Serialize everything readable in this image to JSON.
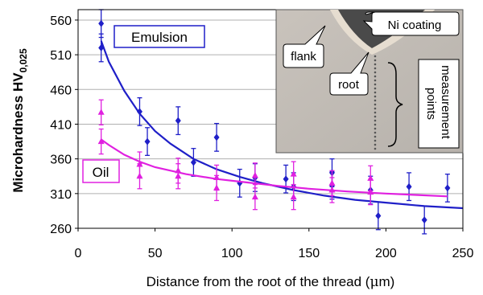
{
  "chart_data": {
    "type": "scatter",
    "xlabel_prefix": "Distance from the root of the thread (",
    "xlabel_mu": "μ",
    "xlabel_suffix": "m)",
    "ylabel_main": "Microhardness HV",
    "ylabel_sub": "0,025",
    "xlim": [
      0,
      250
    ],
    "ylim": [
      260,
      575
    ],
    "xticks": [
      0,
      50,
      100,
      150,
      200,
      250
    ],
    "yticks": [
      260,
      310,
      360,
      410,
      460,
      510,
      560
    ],
    "grid": "horizontal",
    "series": [
      {
        "name": "Emulsion",
        "color": "#1f1fc8",
        "marker": "diamond",
        "points": [
          {
            "x": 15,
            "y": 555,
            "err": 20
          },
          {
            "x": 15,
            "y": 520,
            "err": 20
          },
          {
            "x": 40,
            "y": 428,
            "err": 20
          },
          {
            "x": 45,
            "y": 385,
            "err": 20
          },
          {
            "x": 65,
            "y": 415,
            "err": 20
          },
          {
            "x": 75,
            "y": 355,
            "err": 20
          },
          {
            "x": 90,
            "y": 391,
            "err": 20
          },
          {
            "x": 105,
            "y": 325,
            "err": 20
          },
          {
            "x": 115,
            "y": 333,
            "err": 20
          },
          {
            "x": 135,
            "y": 331,
            "err": 20
          },
          {
            "x": 140,
            "y": 320,
            "err": 20
          },
          {
            "x": 165,
            "y": 340,
            "err": 20
          },
          {
            "x": 165,
            "y": 322,
            "err": 20
          },
          {
            "x": 190,
            "y": 315,
            "err": 20
          },
          {
            "x": 195,
            "y": 278,
            "err": 20
          },
          {
            "x": 215,
            "y": 320,
            "err": 20
          },
          {
            "x": 225,
            "y": 272,
            "err": 20
          },
          {
            "x": 240,
            "y": 318,
            "err": 20
          }
        ],
        "trend": {
          "x": [
            15,
            20,
            30,
            40,
            50,
            60,
            75,
            90,
            105,
            120,
            140,
            160,
            180,
            200,
            225,
            250
          ],
          "y": [
            530,
            500,
            458,
            425,
            400,
            382,
            360,
            345,
            334,
            325,
            315,
            307,
            301,
            297,
            292,
            289
          ]
        }
      },
      {
        "name": "Oil",
        "color": "#e020e0",
        "marker": "triangle",
        "points": [
          {
            "x": 15,
            "y": 427,
            "err": 18
          },
          {
            "x": 15,
            "y": 385,
            "err": 18
          },
          {
            "x": 40,
            "y": 352,
            "err": 18
          },
          {
            "x": 40,
            "y": 335,
            "err": 18
          },
          {
            "x": 65,
            "y": 343,
            "err": 18
          },
          {
            "x": 65,
            "y": 335,
            "err": 18
          },
          {
            "x": 90,
            "y": 333,
            "err": 18
          },
          {
            "x": 90,
            "y": 318,
            "err": 18
          },
          {
            "x": 115,
            "y": 336,
            "err": 18
          },
          {
            "x": 115,
            "y": 305,
            "err": 18
          },
          {
            "x": 140,
            "y": 338,
            "err": 18
          },
          {
            "x": 140,
            "y": 305,
            "err": 18
          },
          {
            "x": 165,
            "y": 325,
            "err": 18
          },
          {
            "x": 165,
            "y": 315,
            "err": 18
          },
          {
            "x": 190,
            "y": 332,
            "err": 18
          },
          {
            "x": 190,
            "y": 312,
            "err": 18
          }
        ],
        "trend": {
          "x": [
            15,
            20,
            30,
            40,
            50,
            70,
            90,
            110,
            130,
            150,
            175,
            200,
            240
          ],
          "y": [
            388,
            380,
            366,
            356,
            348,
            338,
            331,
            326,
            321,
            317,
            313,
            310,
            306
          ]
        }
      }
    ],
    "legend_labels": {
      "emulsion": "Emulsion",
      "oil": "Oil"
    },
    "inset": {
      "labels": {
        "coating": "Ni coating",
        "flank": "flank",
        "root": "root",
        "points_line1": "measurement",
        "points_line2": "points"
      }
    }
  }
}
